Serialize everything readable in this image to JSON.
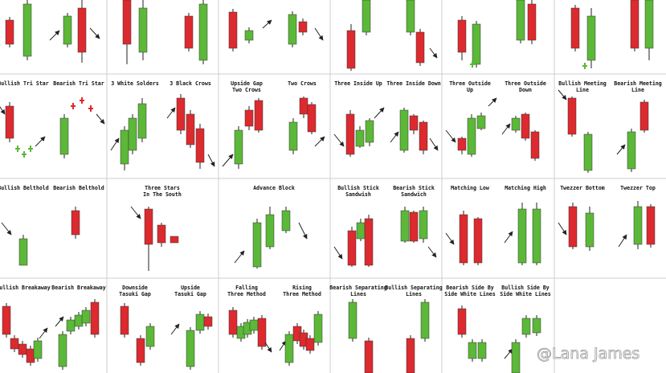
{
  "patterns": [
    {
      "label": [
        "Bullish Tri Star"
      ]
    },
    {
      "label": [
        "Bearish Tri Star"
      ]
    },
    {
      "label": [
        "3 White Solders"
      ]
    },
    {
      "label": [
        "3 Black Crows"
      ]
    },
    {
      "label": [
        "Upside Gap",
        "Two Crows"
      ]
    },
    {
      "label": [
        "Two Crows"
      ]
    },
    {
      "label": [
        "Three Inside Up"
      ]
    },
    {
      "label": [
        "Three Inside Down"
      ]
    },
    {
      "label": [
        "Three Outside",
        "Up"
      ]
    },
    {
      "label": [
        "Three Outside",
        "Down"
      ]
    },
    {
      "label": [
        "Bullish Meeting",
        "Line"
      ]
    },
    {
      "label": [
        "Bearish Meeting",
        "Line"
      ]
    },
    {
      "label": [
        "Bullish Belthold"
      ]
    },
    {
      "label": [
        "Bearish Belthold"
      ]
    },
    {
      "label": [
        "Three Stars",
        "In The South"
      ]
    },
    {
      "label": [
        "Advance Block"
      ]
    },
    {
      "label": [
        "Bullish Stick",
        "Sandwish"
      ]
    },
    {
      "label": [
        "Bearish Stick",
        "Sandwich"
      ]
    },
    {
      "label": [
        "Matching Low"
      ]
    },
    {
      "label": [
        "Matching High"
      ]
    },
    {
      "label": [
        "Twezzer Bottom"
      ]
    },
    {
      "label": [
        "Twezzer Top"
      ]
    },
    {
      "label": [
        "Bullish Breakaway"
      ]
    },
    {
      "label": [
        "Bearish Breakaway"
      ]
    },
    {
      "label": [
        "Downside",
        "Tasuki Gap"
      ]
    },
    {
      "label": [
        "Upside",
        "Tasuki Gap"
      ]
    },
    {
      "label": [
        "Falling",
        "Three Method"
      ]
    },
    {
      "label": [
        "Rising",
        "Three Method"
      ]
    },
    {
      "label": [
        "Bearish Separating",
        "Lines"
      ]
    },
    {
      "label": [
        "Bullish Separating",
        "Lines"
      ]
    },
    {
      "label": [
        "Bearish Side By",
        "Side White Lines"
      ]
    },
    {
      "label": [
        "Bullish Side By",
        "Side White Lines"
      ]
    }
  ],
  "watermark": "@Lana James"
}
